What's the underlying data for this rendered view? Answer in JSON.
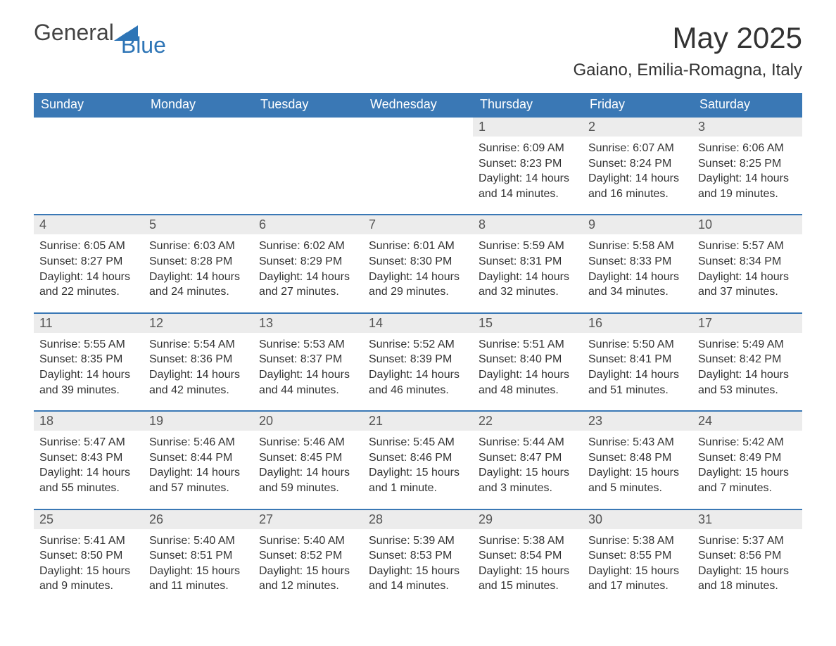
{
  "logo": {
    "word1": "General",
    "word2": "Blue",
    "brand_color": "#2e75b6",
    "text_color": "#444444"
  },
  "title": "May 2025",
  "subtitle": "Gaiano, Emilia-Romagna, Italy",
  "colors": {
    "header_bg": "#3a78b5",
    "header_text": "#ffffff",
    "daynum_bg": "#ececec",
    "daynum_text": "#555555",
    "border": "#3a78b5",
    "body_text": "#333333",
    "page_bg": "#ffffff"
  },
  "fonts": {
    "title_size": 42,
    "subtitle_size": 24,
    "dow_size": 18,
    "daynum_size": 18,
    "body_size": 16
  },
  "columns": [
    "Sunday",
    "Monday",
    "Tuesday",
    "Wednesday",
    "Thursday",
    "Friday",
    "Saturday"
  ],
  "weeks": [
    [
      null,
      null,
      null,
      null,
      {
        "num": "1",
        "sunrise": "Sunrise: 6:09 AM",
        "sunset": "Sunset: 8:23 PM",
        "daylight1": "Daylight: 14 hours",
        "daylight2": "and 14 minutes."
      },
      {
        "num": "2",
        "sunrise": "Sunrise: 6:07 AM",
        "sunset": "Sunset: 8:24 PM",
        "daylight1": "Daylight: 14 hours",
        "daylight2": "and 16 minutes."
      },
      {
        "num": "3",
        "sunrise": "Sunrise: 6:06 AM",
        "sunset": "Sunset: 8:25 PM",
        "daylight1": "Daylight: 14 hours",
        "daylight2": "and 19 minutes."
      }
    ],
    [
      {
        "num": "4",
        "sunrise": "Sunrise: 6:05 AM",
        "sunset": "Sunset: 8:27 PM",
        "daylight1": "Daylight: 14 hours",
        "daylight2": "and 22 minutes."
      },
      {
        "num": "5",
        "sunrise": "Sunrise: 6:03 AM",
        "sunset": "Sunset: 8:28 PM",
        "daylight1": "Daylight: 14 hours",
        "daylight2": "and 24 minutes."
      },
      {
        "num": "6",
        "sunrise": "Sunrise: 6:02 AM",
        "sunset": "Sunset: 8:29 PM",
        "daylight1": "Daylight: 14 hours",
        "daylight2": "and 27 minutes."
      },
      {
        "num": "7",
        "sunrise": "Sunrise: 6:01 AM",
        "sunset": "Sunset: 8:30 PM",
        "daylight1": "Daylight: 14 hours",
        "daylight2": "and 29 minutes."
      },
      {
        "num": "8",
        "sunrise": "Sunrise: 5:59 AM",
        "sunset": "Sunset: 8:31 PM",
        "daylight1": "Daylight: 14 hours",
        "daylight2": "and 32 minutes."
      },
      {
        "num": "9",
        "sunrise": "Sunrise: 5:58 AM",
        "sunset": "Sunset: 8:33 PM",
        "daylight1": "Daylight: 14 hours",
        "daylight2": "and 34 minutes."
      },
      {
        "num": "10",
        "sunrise": "Sunrise: 5:57 AM",
        "sunset": "Sunset: 8:34 PM",
        "daylight1": "Daylight: 14 hours",
        "daylight2": "and 37 minutes."
      }
    ],
    [
      {
        "num": "11",
        "sunrise": "Sunrise: 5:55 AM",
        "sunset": "Sunset: 8:35 PM",
        "daylight1": "Daylight: 14 hours",
        "daylight2": "and 39 minutes."
      },
      {
        "num": "12",
        "sunrise": "Sunrise: 5:54 AM",
        "sunset": "Sunset: 8:36 PM",
        "daylight1": "Daylight: 14 hours",
        "daylight2": "and 42 minutes."
      },
      {
        "num": "13",
        "sunrise": "Sunrise: 5:53 AM",
        "sunset": "Sunset: 8:37 PM",
        "daylight1": "Daylight: 14 hours",
        "daylight2": "and 44 minutes."
      },
      {
        "num": "14",
        "sunrise": "Sunrise: 5:52 AM",
        "sunset": "Sunset: 8:39 PM",
        "daylight1": "Daylight: 14 hours",
        "daylight2": "and 46 minutes."
      },
      {
        "num": "15",
        "sunrise": "Sunrise: 5:51 AM",
        "sunset": "Sunset: 8:40 PM",
        "daylight1": "Daylight: 14 hours",
        "daylight2": "and 48 minutes."
      },
      {
        "num": "16",
        "sunrise": "Sunrise: 5:50 AM",
        "sunset": "Sunset: 8:41 PM",
        "daylight1": "Daylight: 14 hours",
        "daylight2": "and 51 minutes."
      },
      {
        "num": "17",
        "sunrise": "Sunrise: 5:49 AM",
        "sunset": "Sunset: 8:42 PM",
        "daylight1": "Daylight: 14 hours",
        "daylight2": "and 53 minutes."
      }
    ],
    [
      {
        "num": "18",
        "sunrise": "Sunrise: 5:47 AM",
        "sunset": "Sunset: 8:43 PM",
        "daylight1": "Daylight: 14 hours",
        "daylight2": "and 55 minutes."
      },
      {
        "num": "19",
        "sunrise": "Sunrise: 5:46 AM",
        "sunset": "Sunset: 8:44 PM",
        "daylight1": "Daylight: 14 hours",
        "daylight2": "and 57 minutes."
      },
      {
        "num": "20",
        "sunrise": "Sunrise: 5:46 AM",
        "sunset": "Sunset: 8:45 PM",
        "daylight1": "Daylight: 14 hours",
        "daylight2": "and 59 minutes."
      },
      {
        "num": "21",
        "sunrise": "Sunrise: 5:45 AM",
        "sunset": "Sunset: 8:46 PM",
        "daylight1": "Daylight: 15 hours",
        "daylight2": "and 1 minute."
      },
      {
        "num": "22",
        "sunrise": "Sunrise: 5:44 AM",
        "sunset": "Sunset: 8:47 PM",
        "daylight1": "Daylight: 15 hours",
        "daylight2": "and 3 minutes."
      },
      {
        "num": "23",
        "sunrise": "Sunrise: 5:43 AM",
        "sunset": "Sunset: 8:48 PM",
        "daylight1": "Daylight: 15 hours",
        "daylight2": "and 5 minutes."
      },
      {
        "num": "24",
        "sunrise": "Sunrise: 5:42 AM",
        "sunset": "Sunset: 8:49 PM",
        "daylight1": "Daylight: 15 hours",
        "daylight2": "and 7 minutes."
      }
    ],
    [
      {
        "num": "25",
        "sunrise": "Sunrise: 5:41 AM",
        "sunset": "Sunset: 8:50 PM",
        "daylight1": "Daylight: 15 hours",
        "daylight2": "and 9 minutes."
      },
      {
        "num": "26",
        "sunrise": "Sunrise: 5:40 AM",
        "sunset": "Sunset: 8:51 PM",
        "daylight1": "Daylight: 15 hours",
        "daylight2": "and 11 minutes."
      },
      {
        "num": "27",
        "sunrise": "Sunrise: 5:40 AM",
        "sunset": "Sunset: 8:52 PM",
        "daylight1": "Daylight: 15 hours",
        "daylight2": "and 12 minutes."
      },
      {
        "num": "28",
        "sunrise": "Sunrise: 5:39 AM",
        "sunset": "Sunset: 8:53 PM",
        "daylight1": "Daylight: 15 hours",
        "daylight2": "and 14 minutes."
      },
      {
        "num": "29",
        "sunrise": "Sunrise: 5:38 AM",
        "sunset": "Sunset: 8:54 PM",
        "daylight1": "Daylight: 15 hours",
        "daylight2": "and 15 minutes."
      },
      {
        "num": "30",
        "sunrise": "Sunrise: 5:38 AM",
        "sunset": "Sunset: 8:55 PM",
        "daylight1": "Daylight: 15 hours",
        "daylight2": "and 17 minutes."
      },
      {
        "num": "31",
        "sunrise": "Sunrise: 5:37 AM",
        "sunset": "Sunset: 8:56 PM",
        "daylight1": "Daylight: 15 hours",
        "daylight2": "and 18 minutes."
      }
    ]
  ]
}
